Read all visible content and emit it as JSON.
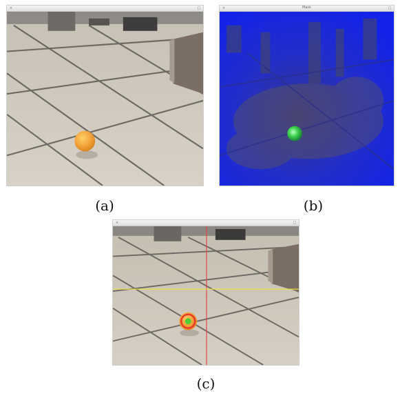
{
  "panels": [
    {
      "id": "a",
      "window_title": "",
      "caption": "(a)",
      "view": "camera-original"
    },
    {
      "id": "b",
      "window_title": "Mask",
      "caption": "(b)",
      "view": "color-mask"
    },
    {
      "id": "c",
      "window_title": "",
      "caption": "(c)",
      "view": "detection-overlay"
    }
  ],
  "colors": {
    "floor": "#cfc8bb",
    "grout": "#5d5a55",
    "ball": "#f2a33a",
    "mask_blue": "#1526e6",
    "mask_green": "#39d14a",
    "crosshair_vertical": "#e04848",
    "crosshair_horizontal": "#e8e04a",
    "detection_ring": "#e83a2a",
    "detection_center": "#4fce3a"
  },
  "icons": {
    "close": "close-icon",
    "maximize": "maximize-icon"
  }
}
